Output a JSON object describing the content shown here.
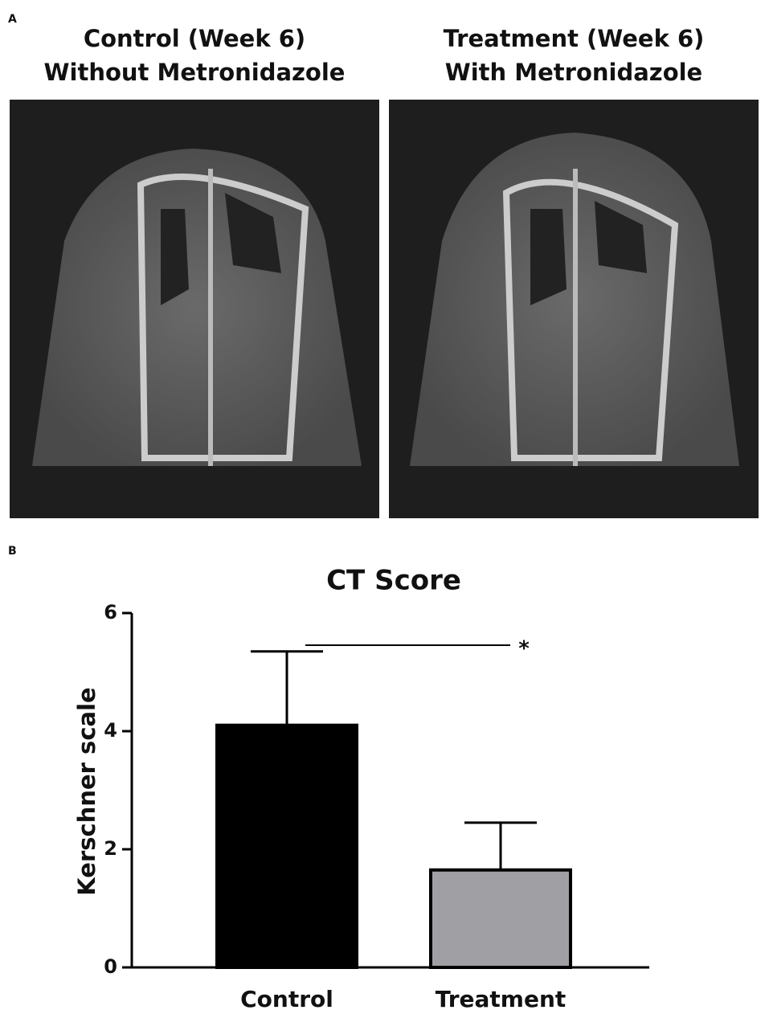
{
  "panels": {
    "a": {
      "label": "A",
      "images": [
        {
          "title_lines": [
            "Control (Week 6)",
            "Without Metronidazole"
          ]
        },
        {
          "title_lines": [
            "Treatment (Week 6)",
            "With Metronidazole"
          ]
        }
      ]
    },
    "b": {
      "label": "B"
    }
  },
  "chart_data": {
    "type": "bar",
    "title": "CT Score",
    "y_label": "Kerschner scale",
    "categories": [
      "Control",
      "Treatment"
    ],
    "values": [
      4.1,
      1.65
    ],
    "errors": [
      1.25,
      0.8
    ],
    "colors": [
      "#000000",
      "#a0a0a4"
    ],
    "ylim": [
      0,
      6
    ],
    "yticks": [
      0,
      2,
      4,
      6
    ],
    "annotation": "*"
  }
}
